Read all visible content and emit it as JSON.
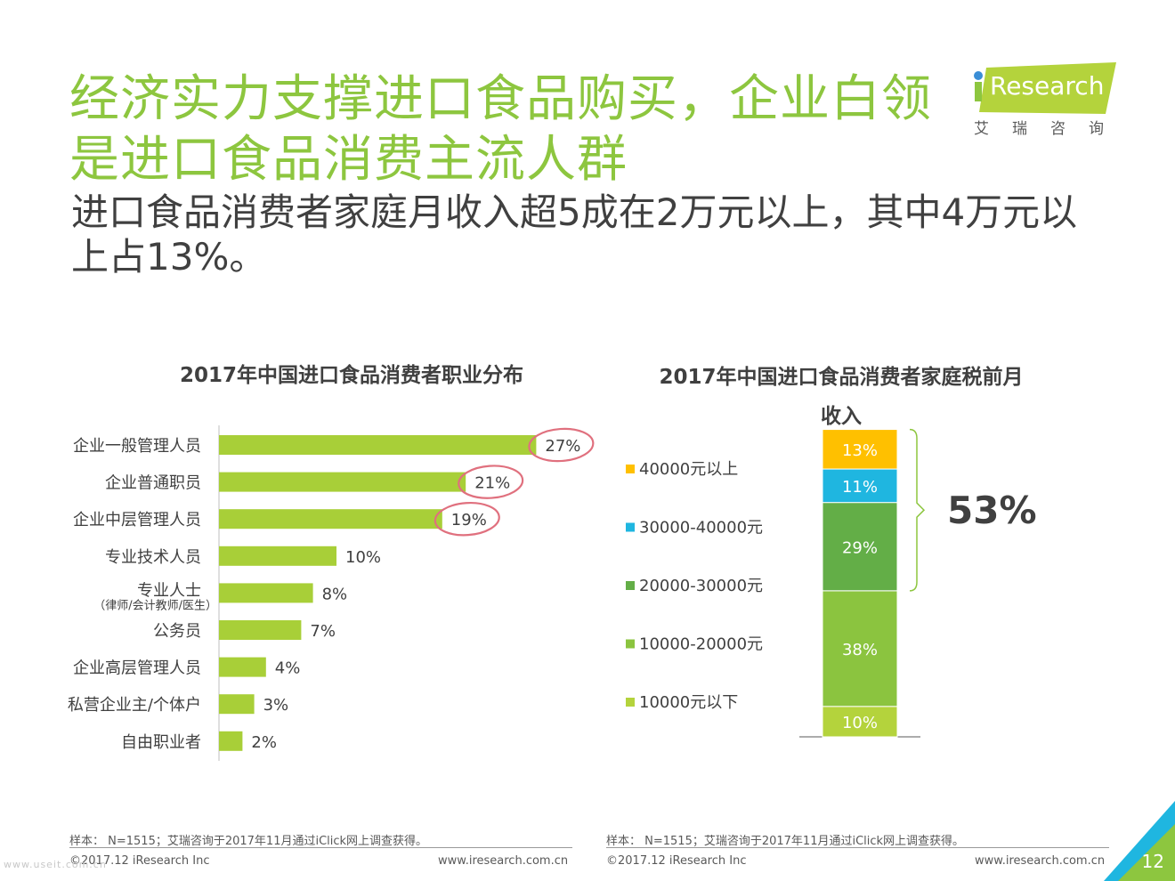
{
  "title": "经济实力支撑进口食品购买，企业白领是进口食品消费主流人群",
  "subtitle": "进口食品消费者家庭月收入超5成在2万元以上，其中4万元以上占13%。",
  "logo": {
    "word": "Research",
    "sub": "艾瑞咨询"
  },
  "chart_data": [
    {
      "type": "bar",
      "orientation": "horizontal",
      "title": "2017年中国进口食品消费者职业分布",
      "categories": [
        "企业一般管理人员",
        "企业普通职员",
        "企业中层管理人员",
        "专业技术人员",
        "专业人士",
        "公务员",
        "企业高层管理人员",
        "私营企业主/个体户",
        "自由职业者"
      ],
      "category_notes": [
        "",
        "",
        "",
        "",
        "（律师/会计教师/医生）",
        "",
        "",
        "",
        ""
      ],
      "values": [
        27,
        21,
        19,
        10,
        8,
        7,
        4,
        3,
        2
      ],
      "labels": [
        "27%",
        "21%",
        "19%",
        "10%",
        "8%",
        "7%",
        "4%",
        "3%",
        "2%"
      ],
      "highlighted": [
        "27%",
        "21%",
        "19%"
      ],
      "color": "#a8cf38",
      "highlight_color": "#e0707e"
    },
    {
      "type": "bar",
      "orientation": "stacked-vertical",
      "title": "2017年中国进口食品消费者家庭税前月收入",
      "series": [
        {
          "name": "10000元以下",
          "value": 10,
          "label": "10%",
          "color": "#b4d33c"
        },
        {
          "name": "10000-20000元",
          "value": 38,
          "label": "38%",
          "color": "#8bc43f"
        },
        {
          "name": "20000-30000元",
          "value": 29,
          "label": "29%",
          "color": "#63ae47"
        },
        {
          "name": "30000-40000元",
          "value": 11,
          "label": "11%",
          "color": "#1fb6e0"
        },
        {
          "name": "40000元以上",
          "value": 13,
          "label": "13%",
          "color": "#ffc000"
        }
      ],
      "bracket_label": "53%"
    }
  ],
  "footer": {
    "left": {
      "source": "样本： N=1515；艾瑞咨询于2017年11月通过iClick网上调查获得。",
      "copyright": "©2017.12 iResearch Inc",
      "url": "www.iresearch.com.cn"
    },
    "right": {
      "source": "样本： N=1515；艾瑞咨询于2017年11月通过iClick网上调查获得。",
      "copyright": "©2017.12 iResearch Inc",
      "url": "www.iresearch.com.cn"
    }
  },
  "page_number": "12",
  "watermark": "www.useit.com.cn"
}
